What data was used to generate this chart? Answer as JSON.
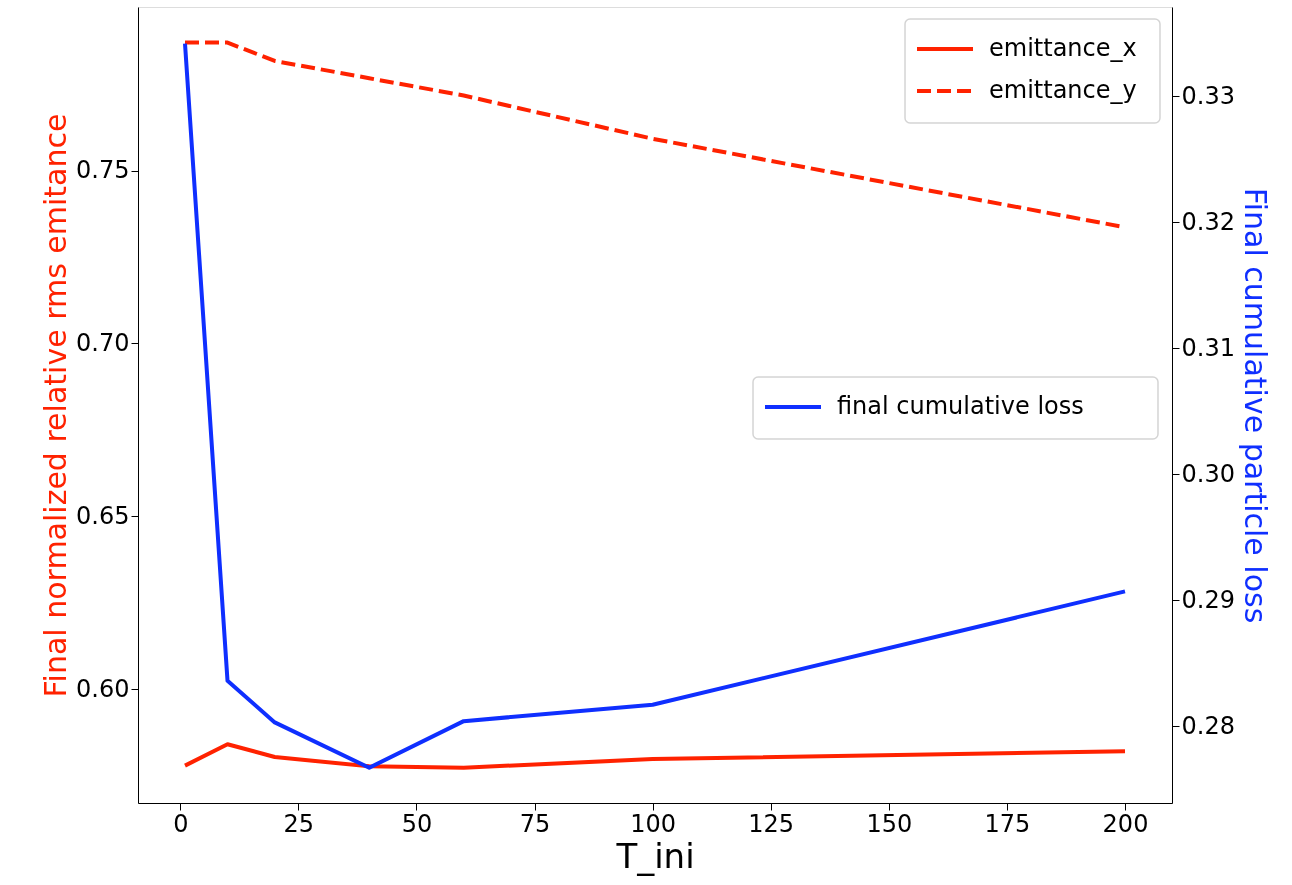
{
  "chart_data": {
    "type": "line",
    "xlabel": "T_ini",
    "ylabel": "Final normalized relative rms emitance",
    "y2label": "Final cumulative particle loss",
    "x": [
      1,
      10,
      20,
      40,
      60,
      100,
      200
    ],
    "series": [
      {
        "name": "emittance_x",
        "color": "#ff2200",
        "line_style": "solid",
        "values": [
          0.5779,
          0.5841,
          0.5804,
          0.5777,
          0.5773,
          0.5798,
          0.5821
        ]
      },
      {
        "name": "emittance_y",
        "color": "#ff2200",
        "line_style": "dashed",
        "values": [
          0.787,
          0.787,
          0.7817,
          0.7767,
          0.7717,
          0.7592,
          0.7336
        ]
      },
      {
        "name": "final cumulative loss",
        "color": "#0f2fff",
        "line_style": "solid",
        "axis": "y2",
        "values": [
          0.3342,
          0.2836,
          0.2803,
          0.2767,
          0.2804,
          0.2817,
          0.2907
        ]
      }
    ],
    "xlim": [
      -8.95,
      209.95
    ],
    "xticks": [
      0,
      25,
      50,
      75,
      100,
      125,
      150,
      175,
      200
    ],
    "ylim": [
      0.5671,
      0.7973
    ],
    "yticks": [
      {
        "value": 0.6,
        "label": "0.60"
      },
      {
        "value": 0.65,
        "label": "0.65"
      },
      {
        "value": 0.7,
        "label": "0.70"
      },
      {
        "value": 0.75,
        "label": "0.75"
      }
    ],
    "y2lim": [
      0.2739,
      0.3371
    ],
    "y2ticks": [
      0.28,
      0.29,
      {
        "value": 0.3,
        "label": "0.30"
      },
      0.31,
      0.32,
      0.33
    ],
    "legend": "top right",
    "grid": false,
    "marker": "none"
  }
}
